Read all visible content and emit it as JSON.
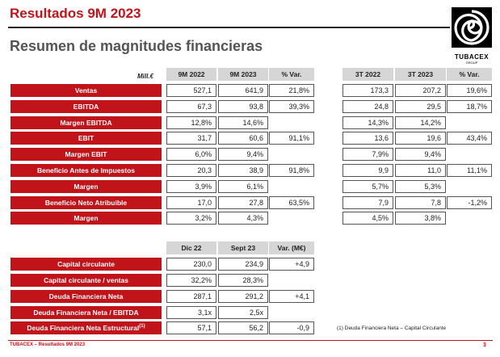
{
  "header": {
    "title": "Resultados 9M 2023",
    "subtitle": "Resumen de magnitudes financieras"
  },
  "logo": {
    "name": "TUBACEX",
    "sub": "GROUP"
  },
  "table1": {
    "units": "Mill.€",
    "columns": [
      "9M 2022",
      "9M 2023",
      "% Var.",
      "3T 2022",
      "3T 2023",
      "% Var."
    ],
    "rows": [
      {
        "label": "Ventas",
        "values": [
          "527,1",
          "641,9",
          "21,8%",
          "173,3",
          "207,2",
          "19,6%"
        ]
      },
      {
        "label": "EBITDA",
        "values": [
          "67,3",
          "93,8",
          "39,3%",
          "24,8",
          "29,5",
          "18,7%"
        ]
      },
      {
        "label": "Margen EBITDA",
        "values": [
          "12,8%",
          "14,6%",
          "",
          "14,3%",
          "14,2%",
          ""
        ]
      },
      {
        "label": "EBIT",
        "values": [
          "31,7",
          "60,6",
          "91,1%",
          "13,6",
          "19,6",
          "43,4%"
        ]
      },
      {
        "label": "Margen EBIT",
        "values": [
          "6,0%",
          "9,4%",
          "",
          "7,9%",
          "9,4%",
          ""
        ]
      },
      {
        "label": "Beneficio Antes de Impuestos",
        "values": [
          "20,3",
          "38,9",
          "91,8%",
          "9,9",
          "11,0",
          "11,1%"
        ]
      },
      {
        "label": "Margen",
        "values": [
          "3,9%",
          "6,1%",
          "",
          "5,7%",
          "5,3%",
          ""
        ]
      },
      {
        "label": "Beneficio Neto Atribuible",
        "values": [
          "17,0",
          "27,8",
          "63,5%",
          "7,9",
          "7,8",
          "-1,2%"
        ]
      },
      {
        "label": "Margen",
        "values": [
          "3,2%",
          "4,3%",
          "",
          "4,5%",
          "3,8%",
          ""
        ]
      }
    ]
  },
  "table2": {
    "columns": [
      "Dic 22",
      "Sept 23",
      "Var. (M€)"
    ],
    "rows": [
      {
        "label": "Capital circulante",
        "values": [
          "230,0",
          "234,9",
          "+4,9"
        ]
      },
      {
        "label": "Capital circulante / ventas",
        "values": [
          "32,2%",
          "28,3%",
          ""
        ]
      },
      {
        "label": "Deuda Financiera Neta",
        "values": [
          "287,1",
          "291,2",
          "+4,1"
        ]
      },
      {
        "label": "Deuda Financiera Neta / EBITDA",
        "values": [
          "3,1x",
          "2,5x",
          ""
        ]
      },
      {
        "label": "Deuda Financiera Neta Estructural",
        "sup": "(1)",
        "values": [
          "57,1",
          "56,2",
          "-0,9"
        ]
      }
    ]
  },
  "footnote": "(1) Deuda Financiera Neta – Capital Circulante",
  "footer": {
    "text": "TUBACEX – Resultados 9M 2023",
    "page": "3"
  }
}
